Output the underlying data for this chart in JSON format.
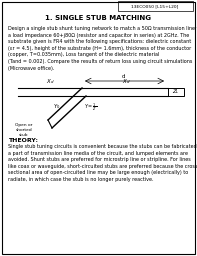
{
  "title": "1. SINGLE STUB MATCHING",
  "header_box_text": "13ECO050 [L15+L20]",
  "body_text": "Design a single stub shunt tuning network to match a 50Ω transmission line to\na load impedance 60+j80Ω (resistor and capacitor in series) at 2GHz. The\nsubstrate given is FR4 with the following specifications: dielectric constant\n(εr = 4.5), height of the substrate (H= 1.6mm), thickness of the conductor\n(copper, T=0.035mm), Loss tangent of the dielectric material\n(Tand = 0.002). Compare the results of return loss using circuit simulations\n(Microwave office).",
  "theory_title": "THEORY:",
  "theory_text": "Single stub tuning circuits is convenient because the stubs can be fabricated as\na part of transmission line media of the circuit, and lumped elements are\navoided. Shunt stubs are preferred for microstrip line or stripline. For lines\nlike coax or waveguide, short-circuited stubs are preferred because the cross-\nsectional area of open-circuited line may be large enough (electrically) to\nradiate, in which case the stub is no longer purely reactive.",
  "bg_color": "#ffffff",
  "text_color": "#000000",
  "border_color": "#000000"
}
